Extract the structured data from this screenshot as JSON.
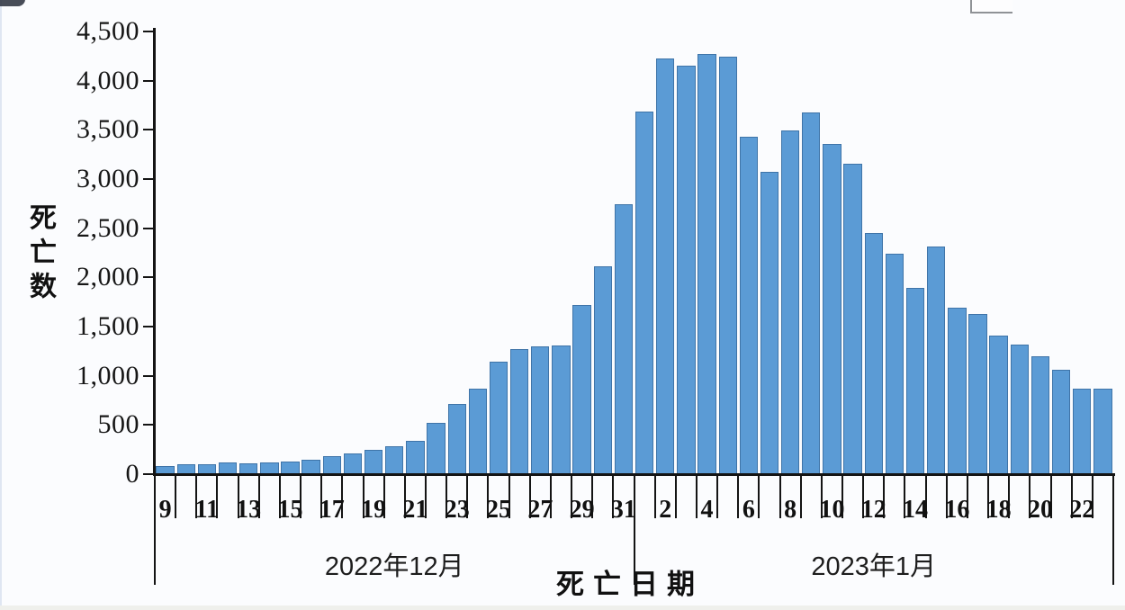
{
  "colors": {
    "bar_fill": "#5b9bd5",
    "bar_border": "#3f74a8",
    "axis": "#141414",
    "background": "#fbfcfe"
  },
  "chart_data": {
    "type": "bar",
    "title": "",
    "ylabel": "死亡数",
    "xlabel": "死亡日期",
    "grid": false,
    "legend_position": "none",
    "ylim": [
      0,
      4500
    ],
    "y_tick_interval": 500,
    "y_tick_labels": [
      "0",
      "500",
      "1,000",
      "1,500",
      "2,000",
      "2,500",
      "3,000",
      "3,500",
      "4,000",
      "4,500"
    ],
    "groups": [
      {
        "label": "2022年12月",
        "days": [
          9,
          10,
          11,
          12,
          13,
          14,
          15,
          16,
          17,
          18,
          19,
          20,
          21,
          22,
          23,
          24,
          25,
          26,
          27,
          28,
          29,
          30,
          31
        ],
        "values": [
          85,
          100,
          100,
          115,
          110,
          115,
          125,
          150,
          185,
          210,
          250,
          285,
          340,
          520,
          710,
          870,
          1140,
          1275,
          1300,
          1310,
          1720,
          2110,
          2740
        ],
        "labeled_days": [
          9,
          11,
          13,
          15,
          17,
          19,
          21,
          23,
          25,
          27,
          29,
          31
        ]
      },
      {
        "label": "2023年1月",
        "days": [
          1,
          2,
          3,
          4,
          5,
          6,
          7,
          8,
          9,
          10,
          11,
          12,
          13,
          14,
          15,
          16,
          17,
          18,
          19,
          20,
          21,
          22,
          23
        ],
        "values": [
          3690,
          4225,
          4150,
          4270,
          4240,
          3430,
          3070,
          3490,
          3680,
          3360,
          3160,
          2450,
          2240,
          1890,
          2310,
          1690,
          1630,
          1410,
          1320,
          1200,
          1060,
          870,
          870
        ],
        "labeled_days": [
          2,
          4,
          6,
          8,
          10,
          12,
          14,
          16,
          18,
          20,
          22
        ]
      }
    ],
    "series_name": "死亡数"
  }
}
